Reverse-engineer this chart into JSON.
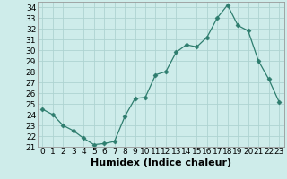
{
  "x": [
    0,
    1,
    2,
    3,
    4,
    5,
    6,
    7,
    8,
    9,
    10,
    11,
    12,
    13,
    14,
    15,
    16,
    17,
    18,
    19,
    20,
    21,
    22,
    23
  ],
  "y": [
    24.5,
    24.0,
    23.0,
    22.5,
    21.8,
    21.2,
    21.3,
    21.5,
    23.8,
    25.5,
    25.6,
    27.7,
    28.0,
    29.8,
    30.5,
    30.3,
    31.2,
    33.0,
    34.2,
    32.3,
    31.8,
    29.0,
    27.3,
    25.2
  ],
  "line_color": "#2e7d6e",
  "marker": "D",
  "marker_size": 2.5,
  "background_color": "#ceecea",
  "grid_color": "#aed4d1",
  "xlabel": "Humidex (Indice chaleur)",
  "xlabel_fontsize": 8,
  "tick_fontsize": 6.5,
  "ylim": [
    21,
    34.5
  ],
  "yticks": [
    21,
    22,
    23,
    24,
    25,
    26,
    27,
    28,
    29,
    30,
    31,
    32,
    33,
    34
  ],
  "xlim": [
    -0.5,
    23.5
  ],
  "xticks": [
    0,
    1,
    2,
    3,
    4,
    5,
    6,
    7,
    8,
    9,
    10,
    11,
    12,
    13,
    14,
    15,
    16,
    17,
    18,
    19,
    20,
    21,
    22,
    23
  ]
}
